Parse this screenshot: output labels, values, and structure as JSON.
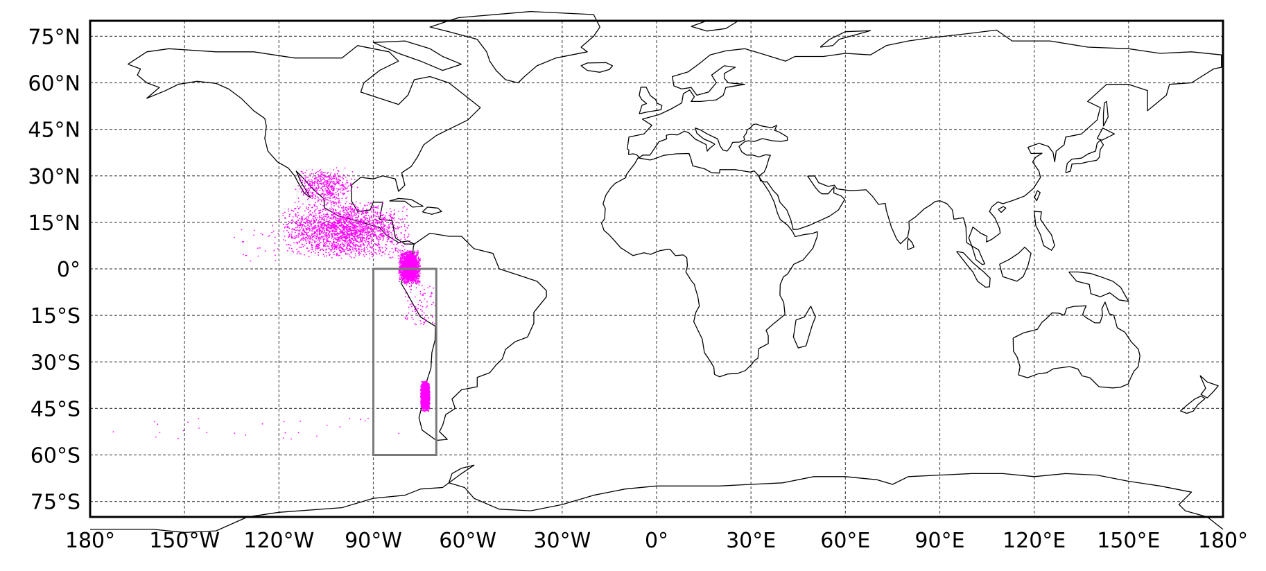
{
  "map": {
    "projection": "equirectangular",
    "extent": {
      "lon": [
        -180,
        180
      ],
      "lat": [
        -80,
        80
      ]
    },
    "gridlines": true,
    "lon_ticks": [
      {
        "value": -180,
        "label": "180°"
      },
      {
        "value": -150,
        "label": "150°W"
      },
      {
        "value": -120,
        "label": "120°W"
      },
      {
        "value": -90,
        "label": "90°W"
      },
      {
        "value": -60,
        "label": "60°W"
      },
      {
        "value": -30,
        "label": "30°W"
      },
      {
        "value": 0,
        "label": "0°"
      },
      {
        "value": 30,
        "label": "30°E"
      },
      {
        "value": 60,
        "label": "60°E"
      },
      {
        "value": 90,
        "label": "90°E"
      },
      {
        "value": 120,
        "label": "120°E"
      },
      {
        "value": 150,
        "label": "150°E"
      },
      {
        "value": 180,
        "label": "180°"
      }
    ],
    "lat_ticks": [
      {
        "value": 75,
        "label": "75°N"
      },
      {
        "value": 60,
        "label": "60°N"
      },
      {
        "value": 45,
        "label": "45°N"
      },
      {
        "value": 30,
        "label": "30°N"
      },
      {
        "value": 15,
        "label": "15°N"
      },
      {
        "value": 0,
        "label": "0°"
      },
      {
        "value": -15,
        "label": "15°S"
      },
      {
        "value": -30,
        "label": "30°S"
      },
      {
        "value": -45,
        "label": "45°S"
      },
      {
        "value": -60,
        "label": "60°S"
      },
      {
        "value": -75,
        "label": "75°S"
      }
    ],
    "study_region": {
      "lon": [
        -90,
        -70
      ],
      "lat": [
        -60,
        0
      ],
      "color": "#7a7a7a"
    },
    "point_color": "#ff00ff",
    "coastline_color": "#000000",
    "point_clusters": [
      {
        "lon": [
          -120,
          -78
        ],
        "lat": [
          3,
          22
        ],
        "density": "high"
      },
      {
        "lon": [
          -115,
          -95
        ],
        "lat": [
          20,
          33
        ],
        "density": "medium"
      },
      {
        "lon": [
          -82,
          -75
        ],
        "lat": [
          -5,
          6
        ],
        "density": "high"
      },
      {
        "lon": [
          -80,
          -70
        ],
        "lat": [
          -18,
          -5
        ],
        "density": "low"
      },
      {
        "lon": [
          -75,
          -72
        ],
        "lat": [
          -46,
          -36
        ],
        "density": "high"
      },
      {
        "lon": [
          -180,
          -80
        ],
        "lat": [
          -55,
          -48
        ],
        "density": "sparse"
      },
      {
        "lon": [
          -135,
          -120
        ],
        "lat": [
          2,
          14
        ],
        "density": "sparse"
      }
    ]
  }
}
